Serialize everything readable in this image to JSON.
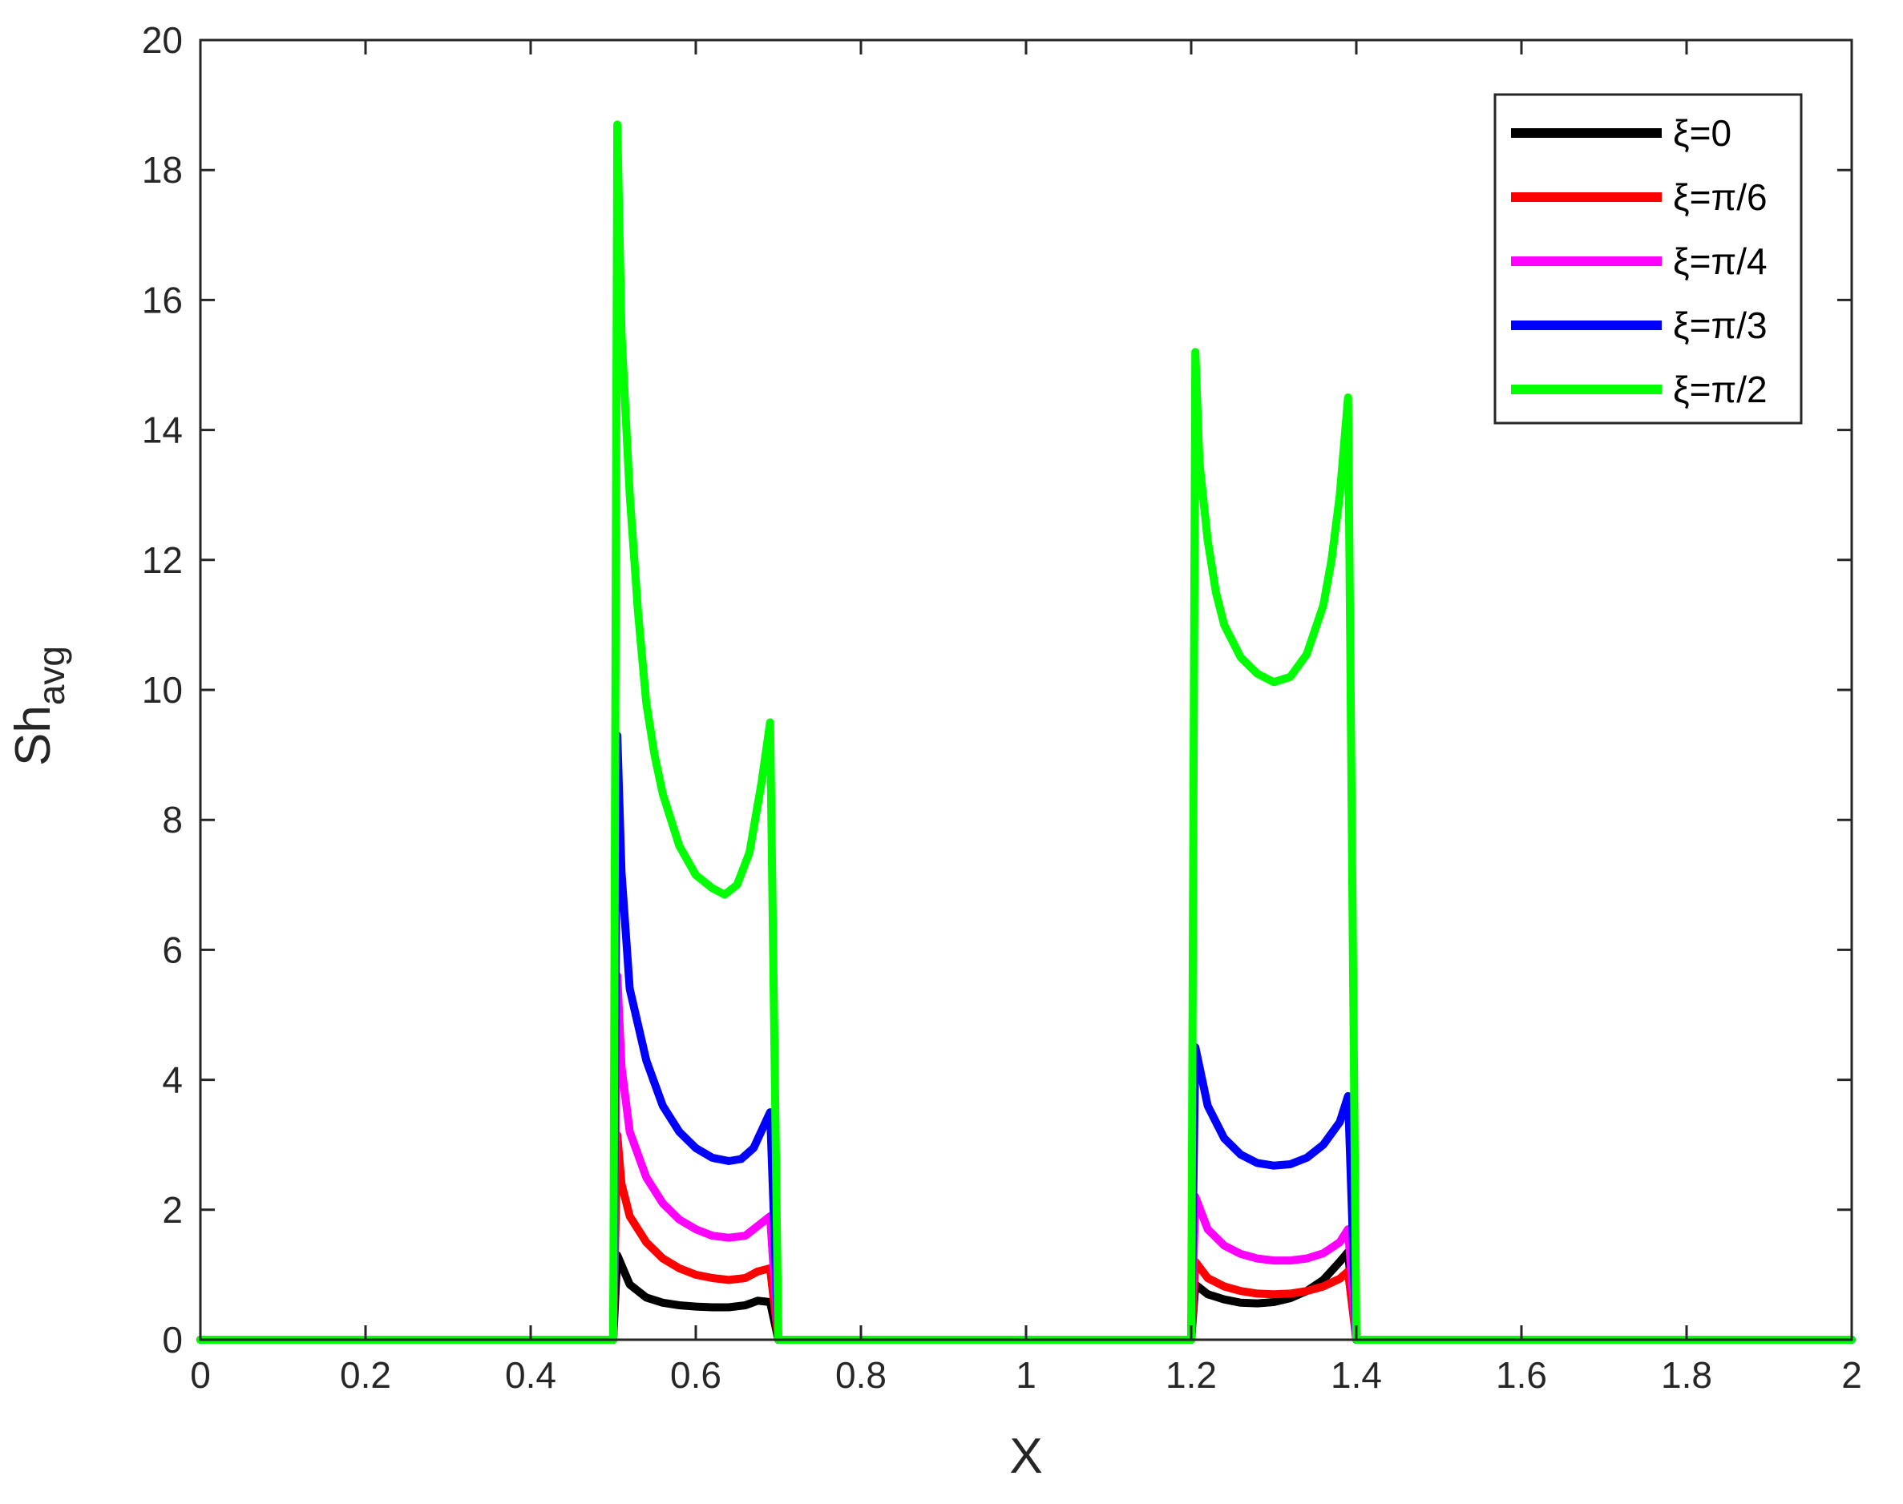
{
  "chart_data": {
    "type": "line",
    "title": "",
    "xlabel": "X",
    "ylabel_main": "Sh",
    "ylabel_sub": "avg",
    "xlim": [
      0,
      2
    ],
    "ylim": [
      0,
      20
    ],
    "x_ticks": [
      0,
      0.2,
      0.4,
      0.6,
      0.8,
      1,
      1.2,
      1.4,
      1.6,
      1.8,
      2
    ],
    "x_tick_labels": [
      "0",
      "0.2",
      "0.4",
      "0.6",
      "0.8",
      "1",
      "1.2",
      "1.4",
      "1.6",
      "1.8",
      "2"
    ],
    "y_ticks": [
      0,
      2,
      4,
      6,
      8,
      10,
      12,
      14,
      16,
      18,
      20
    ],
    "y_tick_labels": [
      "0",
      "2",
      "4",
      "6",
      "8",
      "10",
      "12",
      "14",
      "16",
      "18",
      "20"
    ],
    "grid": false,
    "legend_position": "top-right",
    "series": [
      {
        "name": "ξ=0",
        "color": "#000000",
        "x": [
          0,
          0.49,
          0.5,
          0.505,
          0.52,
          0.54,
          0.56,
          0.58,
          0.6,
          0.62,
          0.64,
          0.66,
          0.675,
          0.69,
          0.7,
          0.71,
          1.19,
          1.2,
          1.205,
          1.22,
          1.24,
          1.26,
          1.28,
          1.3,
          1.32,
          1.34,
          1.36,
          1.38,
          1.39,
          1.4,
          1.41,
          2
        ],
        "y": [
          0,
          0,
          0,
          1.3,
          0.85,
          0.65,
          0.57,
          0.53,
          0.51,
          0.5,
          0.5,
          0.53,
          0.6,
          0.58,
          0,
          0,
          0,
          0,
          0.85,
          0.7,
          0.62,
          0.57,
          0.56,
          0.58,
          0.64,
          0.75,
          0.92,
          1.2,
          1.35,
          0,
          0,
          0
        ]
      },
      {
        "name": "ξ=π/6",
        "color": "#ff0000",
        "x": [
          0,
          0.49,
          0.5,
          0.505,
          0.51,
          0.52,
          0.54,
          0.56,
          0.58,
          0.6,
          0.62,
          0.64,
          0.66,
          0.675,
          0.69,
          0.7,
          0.71,
          1.19,
          1.2,
          1.205,
          1.22,
          1.24,
          1.26,
          1.28,
          1.3,
          1.32,
          1.34,
          1.36,
          1.38,
          1.39,
          1.4,
          1.41,
          2
        ],
        "y": [
          0,
          0,
          0,
          3.15,
          2.4,
          1.9,
          1.5,
          1.25,
          1.1,
          1.0,
          0.95,
          0.92,
          0.95,
          1.05,
          1.1,
          0,
          0,
          0,
          0,
          1.2,
          0.95,
          0.82,
          0.75,
          0.71,
          0.7,
          0.71,
          0.75,
          0.82,
          0.94,
          1.05,
          0,
          0,
          0
        ]
      },
      {
        "name": "ξ=π/4",
        "color": "#ff00ff",
        "x": [
          0,
          0.49,
          0.5,
          0.505,
          0.51,
          0.52,
          0.54,
          0.56,
          0.58,
          0.6,
          0.62,
          0.64,
          0.66,
          0.675,
          0.69,
          0.7,
          0.71,
          1.19,
          1.2,
          1.205,
          1.22,
          1.24,
          1.26,
          1.28,
          1.3,
          1.32,
          1.34,
          1.36,
          1.38,
          1.39,
          1.4,
          1.41,
          2
        ],
        "y": [
          0,
          0,
          0,
          5.6,
          4.2,
          3.2,
          2.5,
          2.1,
          1.85,
          1.7,
          1.6,
          1.57,
          1.6,
          1.75,
          1.9,
          0,
          0,
          0,
          0,
          2.2,
          1.7,
          1.45,
          1.32,
          1.25,
          1.22,
          1.22,
          1.25,
          1.33,
          1.5,
          1.7,
          0,
          0,
          0
        ]
      },
      {
        "name": "ξ=π/3",
        "color": "#0000ff",
        "x": [
          0,
          0.49,
          0.5,
          0.505,
          0.51,
          0.52,
          0.54,
          0.56,
          0.58,
          0.6,
          0.62,
          0.64,
          0.655,
          0.67,
          0.69,
          0.7,
          0.71,
          1.19,
          1.2,
          1.205,
          1.22,
          1.24,
          1.26,
          1.28,
          1.3,
          1.32,
          1.34,
          1.36,
          1.38,
          1.39,
          1.4,
          1.41,
          2
        ],
        "y": [
          0,
          0,
          0,
          9.3,
          7.2,
          5.4,
          4.3,
          3.6,
          3.2,
          2.95,
          2.8,
          2.75,
          2.78,
          2.95,
          3.5,
          0,
          0,
          0,
          0,
          4.5,
          3.6,
          3.1,
          2.85,
          2.72,
          2.68,
          2.7,
          2.8,
          3.0,
          3.35,
          3.75,
          0,
          0,
          0
        ]
      },
      {
        "name": "ξ=π/2",
        "color": "#00ff00",
        "x": [
          0,
          0.49,
          0.5,
          0.505,
          0.51,
          0.52,
          0.53,
          0.54,
          0.55,
          0.56,
          0.58,
          0.6,
          0.62,
          0.635,
          0.65,
          0.665,
          0.68,
          0.69,
          0.7,
          0.71,
          1.19,
          1.2,
          1.205,
          1.21,
          1.22,
          1.23,
          1.24,
          1.26,
          1.28,
          1.3,
          1.32,
          1.34,
          1.36,
          1.37,
          1.38,
          1.39,
          1.4,
          1.41,
          2
        ],
        "y": [
          0,
          0,
          0,
          18.7,
          15.5,
          13.0,
          11.2,
          9.8,
          9.0,
          8.4,
          7.6,
          7.15,
          6.95,
          6.85,
          7.0,
          7.5,
          8.6,
          9.5,
          0,
          0,
          0,
          0,
          15.2,
          13.5,
          12.3,
          11.5,
          11.0,
          10.5,
          10.25,
          10.12,
          10.2,
          10.55,
          11.3,
          12.0,
          13.0,
          14.5,
          0,
          0,
          0
        ]
      }
    ]
  }
}
